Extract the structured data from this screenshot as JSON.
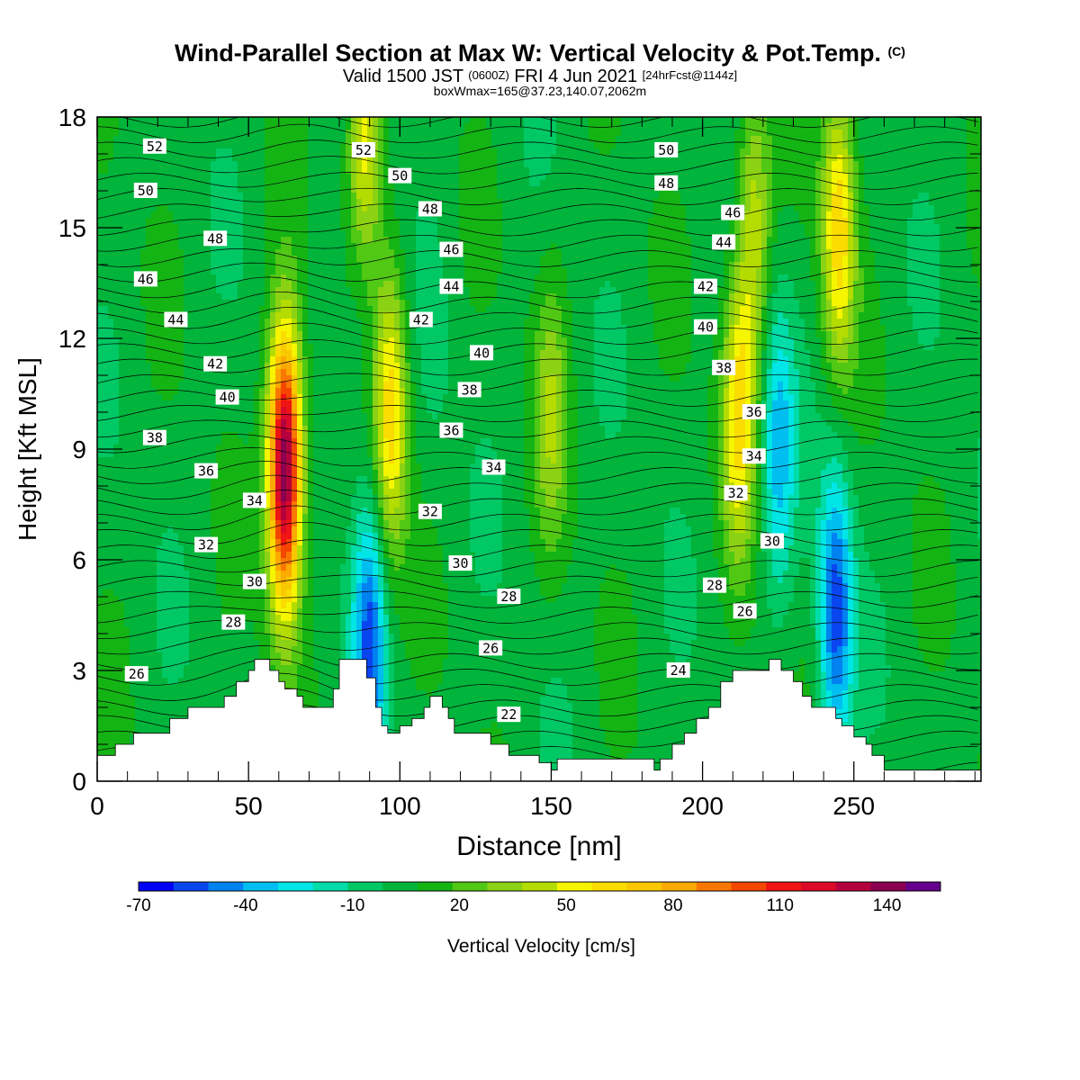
{
  "title": {
    "main": "Wind-Parallel Section at Max W: Vertical Velocity & Pot.Temp.",
    "copyright": "(C)",
    "valid_prefix": "Valid 1500 JST",
    "valid_utc": "(0600Z)",
    "valid_date": "FRI 4 Jun 2021",
    "forecast": "[24hrFcst@1144z]",
    "boxwmax": "boxWmax=165@37.23,140.07,2062m"
  },
  "chart_data": {
    "type": "heatmap",
    "xlabel": "Distance [nm]",
    "ylabel": "Height [Kft MSL]",
    "xlim": [
      0,
      292
    ],
    "ylim": [
      0,
      18
    ],
    "x_ticks": [
      "0",
      "50",
      "100",
      "150",
      "200",
      "250"
    ],
    "y_ticks": [
      "0",
      "3",
      "6",
      "9",
      "12",
      "15",
      "18"
    ],
    "colorbar": {
      "label": "Vertical Velocity [cm/s]",
      "range": [
        -70,
        155
      ],
      "tick_labels": [
        "-70",
        "-40",
        "-10",
        "20",
        "50",
        "80",
        "110",
        "140"
      ],
      "colors": [
        "#0000f5",
        "#0a46f0",
        "#0082f0",
        "#00bef0",
        "#00e6e6",
        "#00dcaa",
        "#00c864",
        "#00b43c",
        "#14b414",
        "#50c814",
        "#8cd214",
        "#b4dc00",
        "#f5f500",
        "#fadc00",
        "#fac800",
        "#faaa00",
        "#fa7800",
        "#f54600",
        "#f01414",
        "#dc0a28",
        "#b4003c",
        "#8c0050",
        "#64008c"
      ]
    },
    "terrain_kft": [
      [
        0,
        0.7
      ],
      [
        6,
        0.7
      ],
      [
        6,
        1.0
      ],
      [
        12,
        1.0
      ],
      [
        12,
        1.3
      ],
      [
        24,
        1.3
      ],
      [
        24,
        1.7
      ],
      [
        30,
        1.7
      ],
      [
        30,
        2.0
      ],
      [
        42,
        2.0
      ],
      [
        42,
        2.3
      ],
      [
        46,
        2.3
      ],
      [
        46,
        2.7
      ],
      [
        50,
        2.7
      ],
      [
        50,
        3.0
      ],
      [
        52,
        3.0
      ],
      [
        52,
        3.3
      ],
      [
        57,
        3.3
      ],
      [
        57,
        3.0
      ],
      [
        60,
        3.0
      ],
      [
        60,
        2.7
      ],
      [
        62,
        2.7
      ],
      [
        62,
        2.5
      ],
      [
        66,
        2.5
      ],
      [
        66,
        2.3
      ],
      [
        68,
        2.3
      ],
      [
        68,
        2.0
      ],
      [
        78,
        2.0
      ],
      [
        78,
        2.5
      ],
      [
        80,
        2.5
      ],
      [
        80,
        3.3
      ],
      [
        89,
        3.3
      ],
      [
        89,
        2.8
      ],
      [
        92,
        2.8
      ],
      [
        92,
        2.0
      ],
      [
        94,
        2.0
      ],
      [
        94,
        1.5
      ],
      [
        96,
        1.5
      ],
      [
        96,
        1.3
      ],
      [
        100,
        1.3
      ],
      [
        100,
        1.5
      ],
      [
        104,
        1.5
      ],
      [
        104,
        1.7
      ],
      [
        108,
        1.7
      ],
      [
        108,
        2.0
      ],
      [
        110,
        2.0
      ],
      [
        110,
        2.3
      ],
      [
        114,
        2.3
      ],
      [
        114,
        2.0
      ],
      [
        116,
        2.0
      ],
      [
        116,
        1.7
      ],
      [
        118,
        1.7
      ],
      [
        118,
        1.3
      ],
      [
        130,
        1.3
      ],
      [
        130,
        1.0
      ],
      [
        136,
        1.0
      ],
      [
        136,
        0.7
      ],
      [
        146,
        0.7
      ],
      [
        146,
        0.5
      ],
      [
        150,
        0.5
      ],
      [
        150,
        0.3
      ],
      [
        152,
        0.3
      ],
      [
        152,
        0.6
      ],
      [
        184,
        0.6
      ],
      [
        184,
        0.3
      ],
      [
        186,
        0.3
      ],
      [
        186,
        0.6
      ],
      [
        190,
        0.6
      ],
      [
        190,
        1.0
      ],
      [
        194,
        1.0
      ],
      [
        194,
        1.3
      ],
      [
        198,
        1.3
      ],
      [
        198,
        1.7
      ],
      [
        202,
        1.7
      ],
      [
        202,
        2.0
      ],
      [
        206,
        2.0
      ],
      [
        206,
        2.7
      ],
      [
        210,
        2.7
      ],
      [
        210,
        3.0
      ],
      [
        222,
        3.0
      ],
      [
        222,
        3.3
      ],
      [
        226,
        3.3
      ],
      [
        226,
        3.0
      ],
      [
        230,
        3.0
      ],
      [
        230,
        2.7
      ],
      [
        233,
        2.7
      ],
      [
        233,
        2.3
      ],
      [
        236,
        2.3
      ],
      [
        236,
        2.0
      ],
      [
        244,
        2.0
      ],
      [
        244,
        1.7
      ],
      [
        246,
        1.7
      ],
      [
        246,
        1.5
      ],
      [
        250,
        1.5
      ],
      [
        250,
        1.2
      ],
      [
        254,
        1.2
      ],
      [
        254,
        1.0
      ],
      [
        256,
        1.0
      ],
      [
        256,
        0.7
      ],
      [
        260,
        0.7
      ],
      [
        260,
        0.3
      ],
      [
        292,
        0.3
      ]
    ],
    "velocity_features": [
      {
        "x": 62,
        "y": 8.5,
        "w": 145
      },
      {
        "x": 88,
        "y": 17,
        "w": 60
      },
      {
        "x": 97,
        "y": 10,
        "w": 60
      },
      {
        "x": 90,
        "y": 3.7,
        "w": -55
      },
      {
        "x": 87,
        "y": 14,
        "w": -20
      },
      {
        "x": 112,
        "y": 12,
        "w": -5
      },
      {
        "x": 150,
        "y": 10,
        "w": 30
      },
      {
        "x": 212,
        "y": 10,
        "w": 55
      },
      {
        "x": 217,
        "y": 15,
        "w": 40
      },
      {
        "x": 225,
        "y": 9,
        "w": -40
      },
      {
        "x": 244,
        "y": 4.5,
        "w": -60
      },
      {
        "x": 245,
        "y": 15,
        "w": 60
      }
    ],
    "theta_labels": [
      {
        "text": "52",
        "x": 19,
        "y": 17.2
      },
      {
        "text": "50",
        "x": 16,
        "y": 16.0
      },
      {
        "text": "48",
        "x": 39,
        "y": 14.7
      },
      {
        "text": "46",
        "x": 16,
        "y": 13.6
      },
      {
        "text": "44",
        "x": 26,
        "y": 12.5
      },
      {
        "text": "42",
        "x": 39,
        "y": 11.3
      },
      {
        "text": "40",
        "x": 43,
        "y": 10.4
      },
      {
        "text": "38",
        "x": 19,
        "y": 9.3
      },
      {
        "text": "36",
        "x": 36,
        "y": 8.4
      },
      {
        "text": "34",
        "x": 52,
        "y": 7.6
      },
      {
        "text": "32",
        "x": 36,
        "y": 6.4
      },
      {
        "text": "30",
        "x": 52,
        "y": 5.4
      },
      {
        "text": "28",
        "x": 45,
        "y": 4.3
      },
      {
        "text": "26",
        "x": 13,
        "y": 2.9
      },
      {
        "text": "52",
        "x": 88,
        "y": 17.1
      },
      {
        "text": "50",
        "x": 100,
        "y": 16.4
      },
      {
        "text": "48",
        "x": 110,
        "y": 15.5
      },
      {
        "text": "46",
        "x": 117,
        "y": 14.4
      },
      {
        "text": "44",
        "x": 117,
        "y": 13.4
      },
      {
        "text": "42",
        "x": 107,
        "y": 12.5
      },
      {
        "text": "40",
        "x": 127,
        "y": 11.6
      },
      {
        "text": "38",
        "x": 123,
        "y": 10.6
      },
      {
        "text": "36",
        "x": 117,
        "y": 9.5
      },
      {
        "text": "34",
        "x": 131,
        "y": 8.5
      },
      {
        "text": "32",
        "x": 110,
        "y": 7.3
      },
      {
        "text": "30",
        "x": 120,
        "y": 5.9
      },
      {
        "text": "28",
        "x": 136,
        "y": 5.0
      },
      {
        "text": "26",
        "x": 130,
        "y": 3.6
      },
      {
        "text": "22",
        "x": 136,
        "y": 1.8
      },
      {
        "text": "50",
        "x": 188,
        "y": 17.1
      },
      {
        "text": "48",
        "x": 188,
        "y": 16.2
      },
      {
        "text": "46",
        "x": 210,
        "y": 15.4
      },
      {
        "text": "44",
        "x": 207,
        "y": 14.6
      },
      {
        "text": "42",
        "x": 201,
        "y": 13.4
      },
      {
        "text": "40",
        "x": 201,
        "y": 12.3
      },
      {
        "text": "38",
        "x": 207,
        "y": 11.2
      },
      {
        "text": "36",
        "x": 217,
        "y": 10.0
      },
      {
        "text": "34",
        "x": 217,
        "y": 8.8
      },
      {
        "text": "32",
        "x": 211,
        "y": 7.8
      },
      {
        "text": "30",
        "x": 223,
        "y": 6.5
      },
      {
        "text": "28",
        "x": 204,
        "y": 5.3
      },
      {
        "text": "26",
        "x": 214,
        "y": 4.6
      },
      {
        "text": "24",
        "x": 192,
        "y": 3.0
      }
    ]
  }
}
